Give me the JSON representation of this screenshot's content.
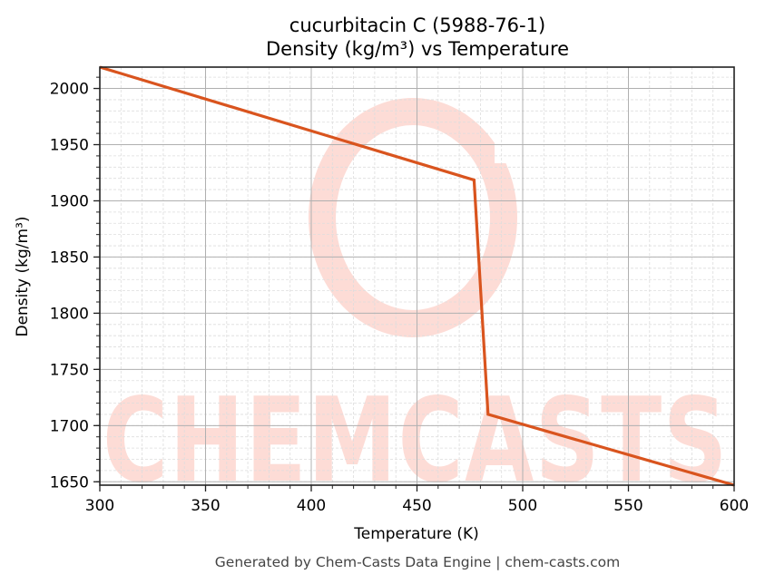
{
  "chart_data": {
    "type": "line",
    "title": "cucurbitacin C (5988-76-1)",
    "subtitle": "Density (kg/m³) vs Temperature",
    "xlabel": "Temperature (K)",
    "ylabel": "Density (kg/m³)",
    "xlim": [
      300,
      600
    ],
    "ylim": [
      1647,
      2019
    ],
    "xticks": [
      300,
      350,
      400,
      450,
      500,
      550,
      600
    ],
    "yticks": [
      1650,
      1700,
      1750,
      1800,
      1850,
      1900,
      1950,
      2000
    ],
    "grid": {
      "major": true,
      "minor": true
    },
    "legend": null,
    "series": [
      {
        "name": "Density",
        "color": "#d9541e",
        "x": [
          300,
          477,
          483.6,
          600
        ],
        "y": [
          2019,
          1918.5,
          1710,
          1647
        ]
      }
    ],
    "annotations": []
  },
  "watermark": {
    "text": "CHEMCASTS",
    "color": "#fddcd6"
  },
  "footer": "Generated by Chem-Casts Data Engine | chem-casts.com",
  "colors": {
    "line": "#d9541e",
    "major_grid": "#b0b0b0",
    "minor_grid": "#dddddd",
    "axes": "#222222"
  }
}
